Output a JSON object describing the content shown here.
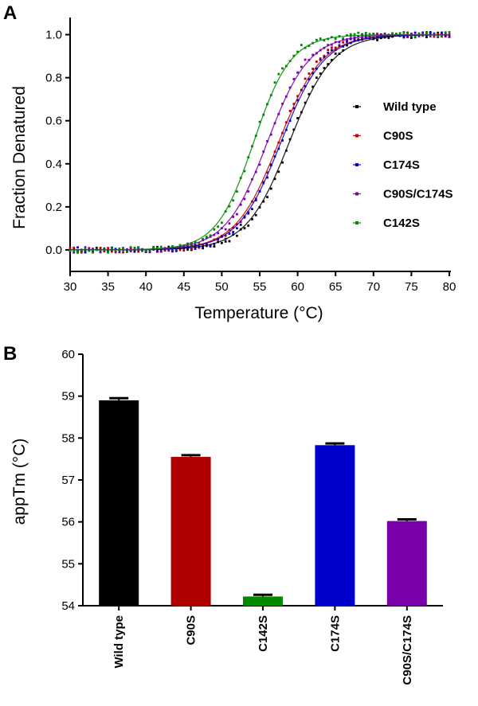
{
  "chart_data": [
    {
      "panel": "A",
      "type": "scatter",
      "xlabel": "Temperature (°C)",
      "ylabel": "Fraction Denatured",
      "xlim": [
        30,
        80
      ],
      "ylim": [
        -0.1,
        1.05
      ],
      "xticks": [
        30,
        35,
        40,
        45,
        50,
        55,
        60,
        65,
        70,
        75,
        80
      ],
      "yticks": [
        0.0,
        0.2,
        0.4,
        0.6,
        0.8,
        1.0
      ],
      "ytick_labels": [
        "0.0",
        "0.2",
        "0.4",
        "0.6",
        "0.8",
        "1.0"
      ],
      "legend_position": "right",
      "series": [
        {
          "name": "Wild type",
          "color": "#000000",
          "tm": 58.9,
          "slope": 2.7
        },
        {
          "name": "C90S",
          "color": "#c00000",
          "tm": 57.5,
          "slope": 2.7
        },
        {
          "name": "C174S",
          "color": "#0000cc",
          "tm": 57.8,
          "slope": 2.7
        },
        {
          "name": "C90S/C174S",
          "color": "#7a00b0",
          "tm": 56.0,
          "slope": 2.6
        },
        {
          "name": "C142S",
          "color": "#008a00",
          "tm": 54.2,
          "slope": 2.3
        }
      ]
    },
    {
      "panel": "B",
      "type": "bar",
      "xlabel": "",
      "ylabel": "appTm (°C)",
      "ylim": [
        54,
        60
      ],
      "yticks": [
        54,
        55,
        56,
        57,
        58,
        59,
        60
      ],
      "categories": [
        "Wild type",
        "C90S",
        "C142S",
        "C174S",
        "C90S/C174S"
      ],
      "values": [
        58.9,
        57.55,
        54.22,
        57.83,
        56.02
      ],
      "errors": [
        0.05,
        0.04,
        0.04,
        0.04,
        0.04
      ],
      "colors": [
        "#000000",
        "#b00000",
        "#008a00",
        "#0000cc",
        "#7a00a8"
      ]
    }
  ]
}
